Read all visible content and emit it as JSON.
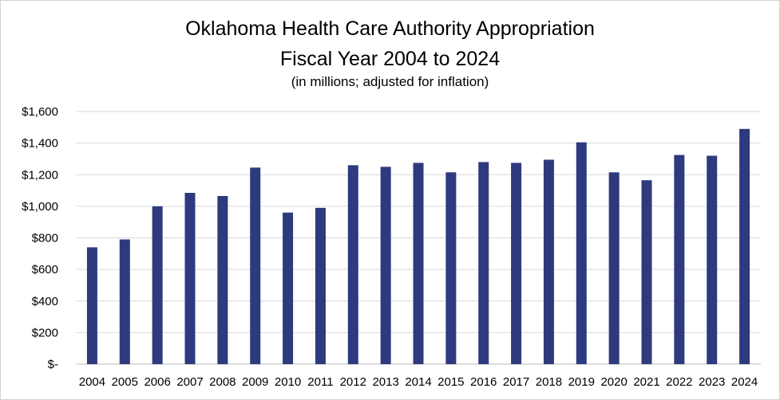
{
  "chart_data": {
    "type": "bar",
    "title": "Oklahoma Health Care Authority Appropriation",
    "title_line2": "Fiscal Year 2004 to 2024",
    "subtitle": "(in millions; adjusted for inflation)",
    "xlabel": "",
    "ylabel": "",
    "ylim": [
      0,
      1600
    ],
    "y_ticks": [
      0,
      200,
      400,
      600,
      800,
      1000,
      1200,
      1400,
      1600
    ],
    "y_tick_labels": [
      "$-",
      "$200",
      "$400",
      "$600",
      "$800",
      "$1,000",
      "$1,200",
      "$1,400",
      "$1,600"
    ],
    "grid": true,
    "legend": "none",
    "bar_color": "#2E3A7E",
    "categories": [
      "2004",
      "2005",
      "2006",
      "2007",
      "2008",
      "2009",
      "2010",
      "2011",
      "2012",
      "2013",
      "2014",
      "2015",
      "2016",
      "2017",
      "2018",
      "2019",
      "2020",
      "2021",
      "2022",
      "2023",
      "2024"
    ],
    "values": [
      740,
      790,
      1000,
      1085,
      1065,
      1245,
      960,
      990,
      1260,
      1250,
      1275,
      1215,
      1280,
      1275,
      1295,
      1405,
      1215,
      1165,
      1325,
      1320,
      1490
    ]
  }
}
